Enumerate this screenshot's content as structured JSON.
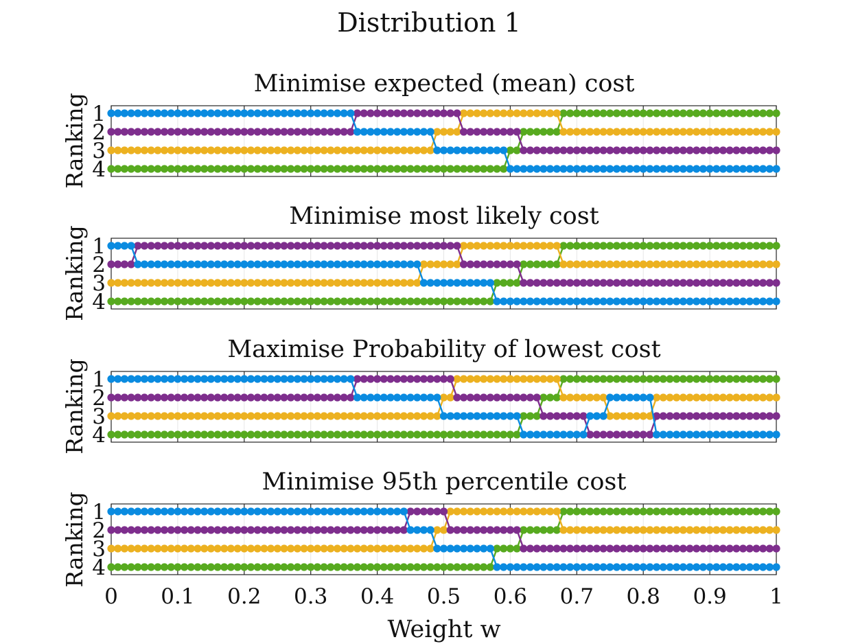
{
  "figure": {
    "title": "Distribution 1"
  },
  "colors": {
    "a": "#0a8be0",
    "b": "#7e2e8d",
    "c": "#ecb120",
    "d": "#57aa1f",
    "axis": "#262626",
    "grid": "#e6e6e6"
  },
  "chart_data": [
    {
      "type": "line",
      "title": "Minimise expected (mean) cost",
      "xlabel": "",
      "ylabel": "Ranking",
      "xlim": [
        0,
        1
      ],
      "ylim": [
        4,
        1
      ],
      "y_ticks": [
        "1",
        "2",
        "3",
        "4"
      ],
      "segments": [
        {
          "from": 0,
          "to": 0.37,
          "ranks": {
            "a": 1,
            "b": 2,
            "c": 3,
            "d": 4
          }
        },
        {
          "from": 0.37,
          "to": 0.49,
          "ranks": {
            "a": 2,
            "b": 1,
            "c": 3,
            "d": 4
          }
        },
        {
          "from": 0.49,
          "to": 0.53,
          "ranks": {
            "a": 3,
            "b": 1,
            "c": 2,
            "d": 4
          }
        },
        {
          "from": 0.53,
          "to": 0.6,
          "ranks": {
            "a": 3,
            "b": 2,
            "c": 1,
            "d": 4
          }
        },
        {
          "from": 0.6,
          "to": 0.62,
          "ranks": {
            "a": 4,
            "b": 2,
            "c": 1,
            "d": 3
          }
        },
        {
          "from": 0.62,
          "to": 0.68,
          "ranks": {
            "a": 4,
            "b": 3,
            "c": 1,
            "d": 2
          }
        },
        {
          "from": 0.68,
          "to": 1,
          "ranks": {
            "a": 4,
            "b": 3,
            "c": 2,
            "d": 1
          }
        }
      ]
    },
    {
      "type": "line",
      "title": "Minimise most likely cost",
      "xlabel": "",
      "ylabel": "Ranking",
      "xlim": [
        0,
        1
      ],
      "ylim": [
        4,
        1
      ],
      "y_ticks": [
        "1",
        "2",
        "3",
        "4"
      ],
      "segments": [
        {
          "from": 0,
          "to": 0.04,
          "ranks": {
            "a": 1,
            "b": 2,
            "c": 3,
            "d": 4
          }
        },
        {
          "from": 0.04,
          "to": 0.47,
          "ranks": {
            "a": 2,
            "b": 1,
            "c": 3,
            "d": 4
          }
        },
        {
          "from": 0.47,
          "to": 0.53,
          "ranks": {
            "a": 3,
            "b": 1,
            "c": 2,
            "d": 4
          }
        },
        {
          "from": 0.53,
          "to": 0.58,
          "ranks": {
            "a": 3,
            "b": 2,
            "c": 1,
            "d": 4
          }
        },
        {
          "from": 0.58,
          "to": 0.62,
          "ranks": {
            "a": 4,
            "b": 2,
            "c": 1,
            "d": 3
          }
        },
        {
          "from": 0.62,
          "to": 0.68,
          "ranks": {
            "a": 4,
            "b": 3,
            "c": 1,
            "d": 2
          }
        },
        {
          "from": 0.68,
          "to": 1,
          "ranks": {
            "a": 4,
            "b": 3,
            "c": 2,
            "d": 1
          }
        }
      ]
    },
    {
      "type": "line",
      "title": "Maximise Probability of lowest cost",
      "xlabel": "",
      "ylabel": "Ranking",
      "xlim": [
        0,
        1
      ],
      "ylim": [
        4,
        1
      ],
      "y_ticks": [
        "1",
        "2",
        "3",
        "4"
      ],
      "segments": [
        {
          "from": 0,
          "to": 0.37,
          "ranks": {
            "a": 1,
            "b": 2,
            "c": 3,
            "d": 4
          }
        },
        {
          "from": 0.37,
          "to": 0.5,
          "ranks": {
            "a": 2,
            "b": 1,
            "c": 3,
            "d": 4
          }
        },
        {
          "from": 0.5,
          "to": 0.52,
          "ranks": {
            "a": 3,
            "b": 1,
            "c": 2,
            "d": 4
          }
        },
        {
          "from": 0.52,
          "to": 0.62,
          "ranks": {
            "a": 3,
            "b": 2,
            "c": 1,
            "d": 4
          }
        },
        {
          "from": 0.62,
          "to": 0.65,
          "ranks": {
            "a": 4,
            "b": 2,
            "c": 1,
            "d": 3
          }
        },
        {
          "from": 0.65,
          "to": 0.68,
          "ranks": {
            "a": 4,
            "b": 3,
            "c": 1,
            "d": 2
          }
        },
        {
          "from": 0.68,
          "to": 0.72,
          "ranks": {
            "a": 4,
            "b": 3,
            "c": 2,
            "d": 1
          }
        },
        {
          "from": 0.72,
          "to": 0.75,
          "ranks": {
            "a": 3,
            "b": 4,
            "c": 2,
            "d": 1
          }
        },
        {
          "from": 0.75,
          "to": 0.82,
          "ranks": {
            "a": 2,
            "b": 4,
            "c": 3,
            "d": 1
          }
        },
        {
          "from": 0.82,
          "to": 1,
          "ranks": {
            "a": 4,
            "b": 3,
            "c": 2,
            "d": 1
          }
        }
      ]
    },
    {
      "type": "line",
      "title": "Minimise 95th percentile cost",
      "xlabel": "Weight w",
      "ylabel": "Ranking",
      "xlim": [
        0,
        1
      ],
      "ylim": [
        4,
        1
      ],
      "y_ticks": [
        "1",
        "2",
        "3",
        "4"
      ],
      "x_ticks": [
        "0",
        "0.1",
        "0.2",
        "0.3",
        "0.4",
        "0.5",
        "0.6",
        "0.7",
        "0.8",
        "0.9",
        "1"
      ],
      "segments": [
        {
          "from": 0,
          "to": 0.45,
          "ranks": {
            "a": 1,
            "b": 2,
            "c": 3,
            "d": 4
          }
        },
        {
          "from": 0.45,
          "to": 0.49,
          "ranks": {
            "a": 2,
            "b": 1,
            "c": 3,
            "d": 4
          }
        },
        {
          "from": 0.49,
          "to": 0.51,
          "ranks": {
            "a": 3,
            "b": 1,
            "c": 2,
            "d": 4
          }
        },
        {
          "from": 0.51,
          "to": 0.58,
          "ranks": {
            "a": 3,
            "b": 2,
            "c": 1,
            "d": 4
          }
        },
        {
          "from": 0.58,
          "to": 0.62,
          "ranks": {
            "a": 4,
            "b": 2,
            "c": 1,
            "d": 3
          }
        },
        {
          "from": 0.62,
          "to": 0.68,
          "ranks": {
            "a": 4,
            "b": 3,
            "c": 1,
            "d": 2
          }
        },
        {
          "from": 0.68,
          "to": 1,
          "ranks": {
            "a": 4,
            "b": 3,
            "c": 2,
            "d": 1
          }
        }
      ]
    }
  ]
}
